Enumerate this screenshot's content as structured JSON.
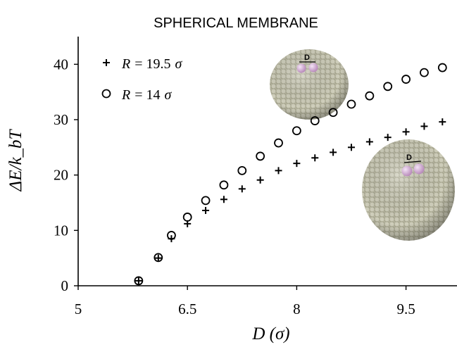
{
  "chart_data": {
    "type": "scatter",
    "title": "SPHERICAL MEMBRANE",
    "xlabel": "D (σ)",
    "ylabel": "ΔE/k_bT",
    "xlim": [
      5,
      10.2
    ],
    "ylim": [
      0,
      45
    ],
    "xticks": [
      5,
      6.5,
      8,
      9.5
    ],
    "xtick_labels": [
      "5",
      "6.5",
      "8",
      "9.5"
    ],
    "yticks": [
      0,
      10,
      20,
      30,
      40
    ],
    "ytick_labels": [
      "0",
      "10",
      "20",
      "30",
      "40"
    ],
    "grid": false,
    "legend_position": "top-left",
    "series": [
      {
        "name": "R = 19.5 σ",
        "marker": "plus",
        "x": [
          5.83,
          6.1,
          6.28,
          6.5,
          6.75,
          7.0,
          7.25,
          7.5,
          7.75,
          8.0,
          8.25,
          8.5,
          8.75,
          9.0,
          9.25,
          9.5,
          9.75,
          10.0
        ],
        "y": [
          0.9,
          5.0,
          8.5,
          11.2,
          13.6,
          15.6,
          17.5,
          19.1,
          20.8,
          22.1,
          23.1,
          24.1,
          25.0,
          26.0,
          26.8,
          27.8,
          28.8,
          29.6
        ]
      },
      {
        "name": "R = 14 σ",
        "marker": "circle",
        "x": [
          5.83,
          6.1,
          6.28,
          6.5,
          6.75,
          7.0,
          7.25,
          7.5,
          7.75,
          8.0,
          8.25,
          8.5,
          8.75,
          9.0,
          9.25,
          9.5,
          9.75,
          10.0
        ],
        "y": [
          0.9,
          5.1,
          9.1,
          12.4,
          15.4,
          18.2,
          20.8,
          23.4,
          25.8,
          28.0,
          29.8,
          31.3,
          32.8,
          34.3,
          36.0,
          37.3,
          38.5,
          39.4
        ]
      }
    ],
    "legend": [
      {
        "symbol": "R",
        "relation": "= 19.5",
        "unit": "σ"
      },
      {
        "symbol": "R",
        "relation": "= 14",
        "unit": "σ"
      }
    ],
    "annotations": [
      "D",
      "D"
    ],
    "colors": {
      "sphere": "#c3c2ad",
      "bead": "#d2a8d4",
      "axis": "#000000"
    }
  }
}
